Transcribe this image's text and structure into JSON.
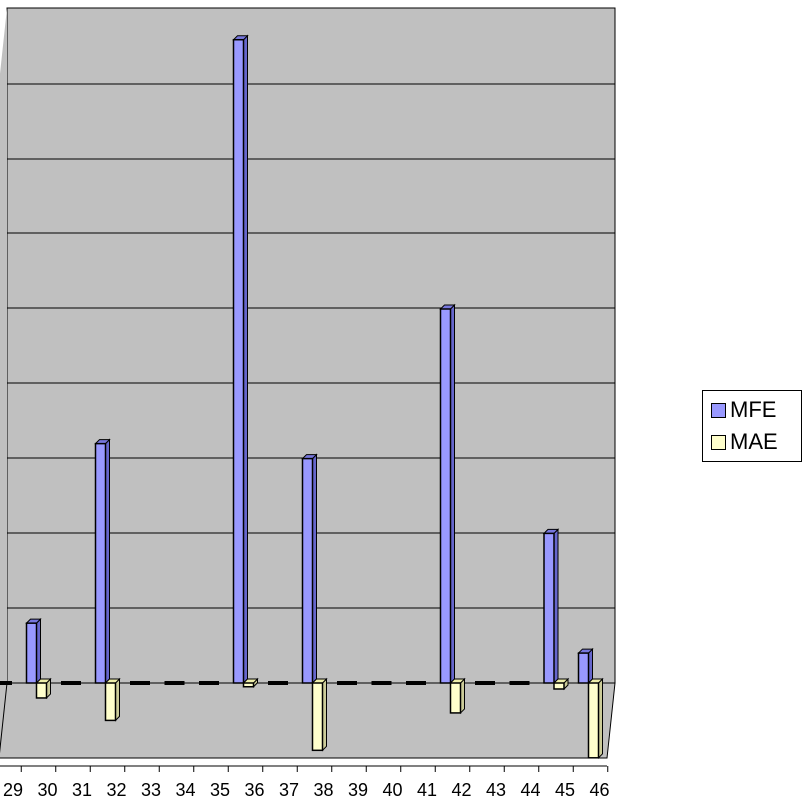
{
  "chart_data": {
    "type": "bar",
    "categories": [
      "29",
      "30",
      "31",
      "32",
      "33",
      "34",
      "35",
      "36",
      "37",
      "38",
      "39",
      "40",
      "41",
      "42",
      "43",
      "44",
      "45",
      "46"
    ],
    "series": [
      {
        "name": "MFE",
        "color": "#9999ff",
        "values": [
          0,
          0.8,
          0,
          3.2,
          0,
          0,
          0,
          8.6,
          0,
          3.0,
          0,
          0,
          0,
          5.0,
          0,
          0,
          2.0,
          0.4
        ]
      },
      {
        "name": "MAE",
        "color": "#ffffcc",
        "values": [
          0,
          -0.2,
          0,
          -0.5,
          0,
          0,
          0,
          -0.05,
          0,
          -0.9,
          0,
          0,
          0,
          -0.4,
          0,
          0,
          -0.08,
          -1.0
        ]
      }
    ],
    "ylim": [
      -1.0,
      8.9
    ],
    "grid": true,
    "legend_position": "right",
    "title": "",
    "xlabel": "",
    "ylabel": ""
  }
}
